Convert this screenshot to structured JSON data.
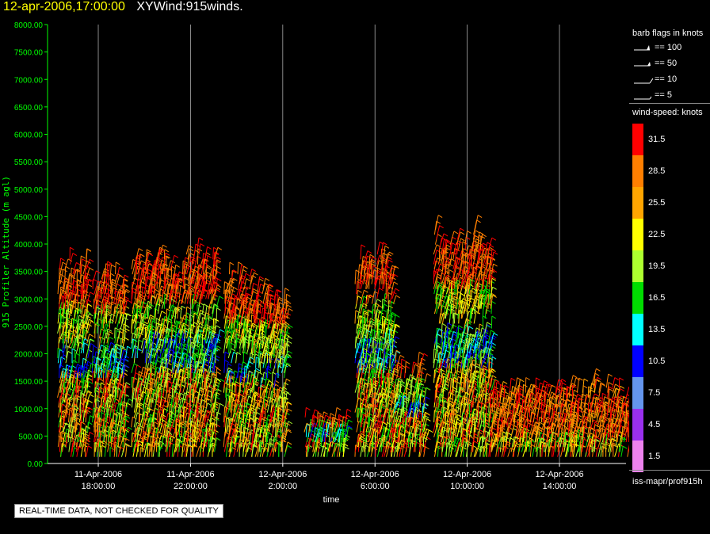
{
  "header": {
    "timestamp": "12-apr-2006,17:00:00",
    "title": "XYWind:915winds."
  },
  "chart_data": {
    "type": "wind-barb time-height plot",
    "ylabel": "915 Profiler Altitude (m agl)",
    "xlabel": "time",
    "ylim": [
      0,
      8000
    ],
    "yticks": [
      "0.00",
      "500.00",
      "1000.00",
      "1500.00",
      "2000.00",
      "2500.00",
      "3000.00",
      "3500.00",
      "4000.00",
      "4500.00",
      "5000.00",
      "5500.00",
      "6000.00",
      "6500.00",
      "7000.00",
      "7500.00",
      "8000.00"
    ],
    "xlim_hours": [
      15.8,
      32.0
    ],
    "xticks": [
      {
        "t": 18,
        "line1": "11-Apr-2006",
        "line2": "18:00:00"
      },
      {
        "t": 22,
        "line1": "11-Apr-2006",
        "line2": "22:00:00"
      },
      {
        "t": 26,
        "line1": "12-Apr-2006",
        "line2": "2:00:00"
      },
      {
        "t": 30,
        "line1": "12-Apr-2006",
        "line2": "6:00:00"
      },
      {
        "t": 34,
        "line1": "12-Apr-2006",
        "line2": "10:00:00"
      },
      {
        "t": 38,
        "line1": "12-Apr-2006",
        "line2": "14:00:00"
      }
    ],
    "grid": "vertical at x ticks",
    "wind_data_note": "Wind barbs colored by speed; profiles sampled roughly every 20 min from ~100 m to ~4000 m agl",
    "profiles": [
      {
        "t_start": 16.3,
        "t_end": 17.6,
        "top": 3800,
        "low_top": 1600
      },
      {
        "t_start": 17.8,
        "t_end": 19.2,
        "top": 3700,
        "low_top": 2000
      },
      {
        "t_start": 19.5,
        "t_end": 20.2,
        "top": 3900,
        "low_top": 1500
      },
      {
        "t_start": 20.2,
        "t_end": 23.2,
        "top": 4000,
        "low_top": 2400
      },
      {
        "t_start": 23.5,
        "t_end": 24.8,
        "top": 3500,
        "low_top": 1500
      },
      {
        "t_start": 24.8,
        "t_end": 26.2,
        "top": 3300,
        "low_top": 1200
      },
      {
        "t_start": 27.0,
        "t_end": 28.8,
        "top": 900,
        "low_top": 700
      },
      {
        "t_start": 29.2,
        "t_end": 30.8,
        "top": 4000,
        "low_top": 2600
      },
      {
        "t_start": 30.8,
        "t_end": 32.2,
        "top": 2000,
        "low_top": 1300
      },
      {
        "t_start": 32.6,
        "t_end": 35.0,
        "top": 4300,
        "low_top": 2200
      },
      {
        "t_start": 35.0,
        "t_end": 38.5,
        "top": 1500,
        "low_top": 1200
      },
      {
        "t_start": 38.5,
        "t_end": 41.2,
        "top": 1500,
        "low_top": 1100
      }
    ],
    "speed_scale": [
      {
        "label": "1.5",
        "color": "#ee82ee"
      },
      {
        "label": "4.5",
        "color": "#9a30ee"
      },
      {
        "label": "7.5",
        "color": "#6495ed"
      },
      {
        "label": "10.5",
        "color": "#0000ff"
      },
      {
        "label": "13.5",
        "color": "#00ffff"
      },
      {
        "label": "16.5",
        "color": "#00dd00"
      },
      {
        "label": "19.5",
        "color": "#adff2f"
      },
      {
        "label": "22.5",
        "color": "#ffff00"
      },
      {
        "label": "25.5",
        "color": "#ffa500"
      },
      {
        "label": "28.5",
        "color": "#ff7f00"
      },
      {
        "label": "31.5",
        "color": "#ff0000"
      }
    ]
  },
  "legend": {
    "barb_title": "barb flags in knots",
    "flags": [
      "== 100",
      "== 50",
      "== 10",
      "== 5"
    ],
    "speed_title": "wind-speed: knots",
    "source": "iss-mapr/prof915h"
  },
  "quality_note": "REAL-TIME DATA, NOT CHECKED FOR QUALITY",
  "colors": {
    "axis": "#00ff00",
    "grid": "#aaaaaa",
    "timestamp": "#ffff00"
  }
}
